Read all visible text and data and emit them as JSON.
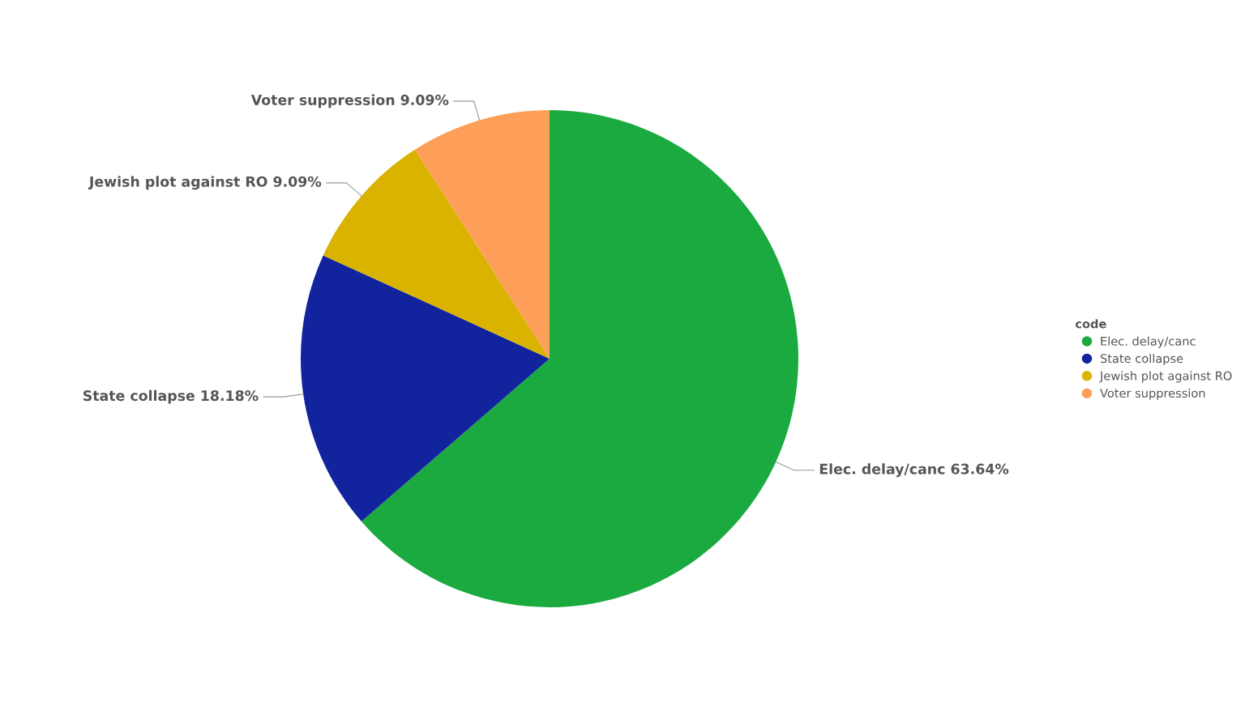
{
  "chart_data": {
    "type": "pie",
    "legend_title": "code",
    "legend": "right",
    "categories": [
      "Elec. delay/canc",
      "State collapse",
      "Jewish plot against RO",
      "Voter suppression"
    ],
    "values": [
      63.64,
      18.18,
      9.09,
      9.09
    ],
    "value_labels": [
      "63.64%",
      "18.18%",
      "9.09%",
      "9.09%"
    ],
    "colors": [
      "#1aaa3f",
      "#12239e",
      "#d9b300",
      "#fe9f59"
    ]
  }
}
